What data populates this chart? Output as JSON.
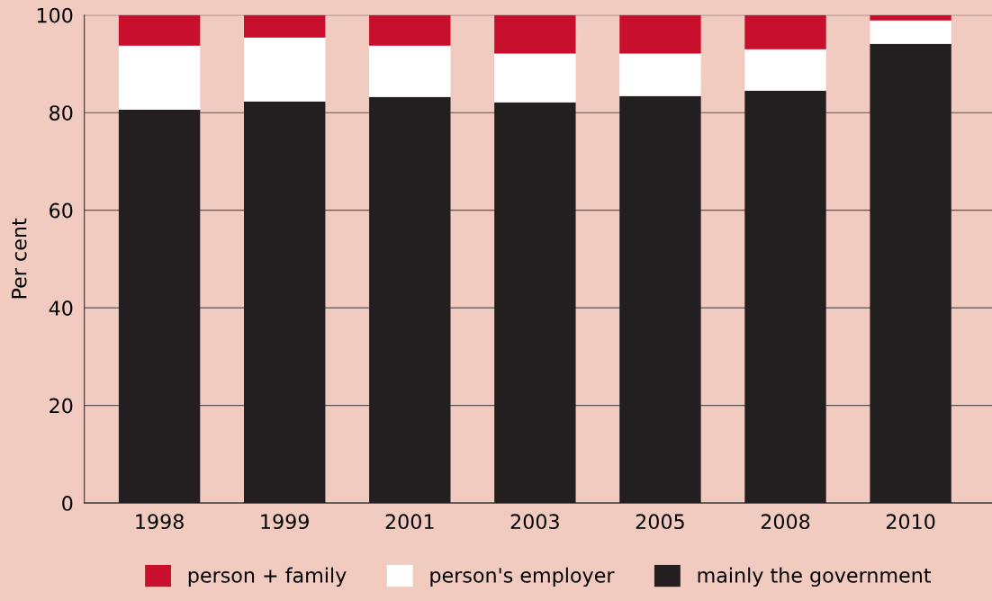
{
  "chart_data": {
    "type": "bar",
    "stacked": true,
    "ylabel": "Per cent",
    "categories": [
      "1998",
      "1999",
      "2001",
      "2003",
      "2005",
      "2008",
      "2010"
    ],
    "series": [
      {
        "name": "mainly the government",
        "color": "#231f20",
        "values": [
          80.6,
          82.3,
          83.2,
          82.1,
          83.4,
          84.5,
          94.1
        ]
      },
      {
        "name": "person's employer",
        "color": "#ffffff",
        "values": [
          13.1,
          13.1,
          10.5,
          10.0,
          8.7,
          8.5,
          4.8
        ]
      },
      {
        "name": "person + family",
        "color": "#c8102e",
        "values": [
          6.3,
          4.6,
          6.3,
          7.9,
          7.9,
          7.0,
          1.1
        ]
      }
    ],
    "ylim": [
      0,
      100
    ],
    "yticks": [
      0,
      20,
      40,
      60,
      80,
      100
    ],
    "grid": "y",
    "legend": "bottom"
  }
}
